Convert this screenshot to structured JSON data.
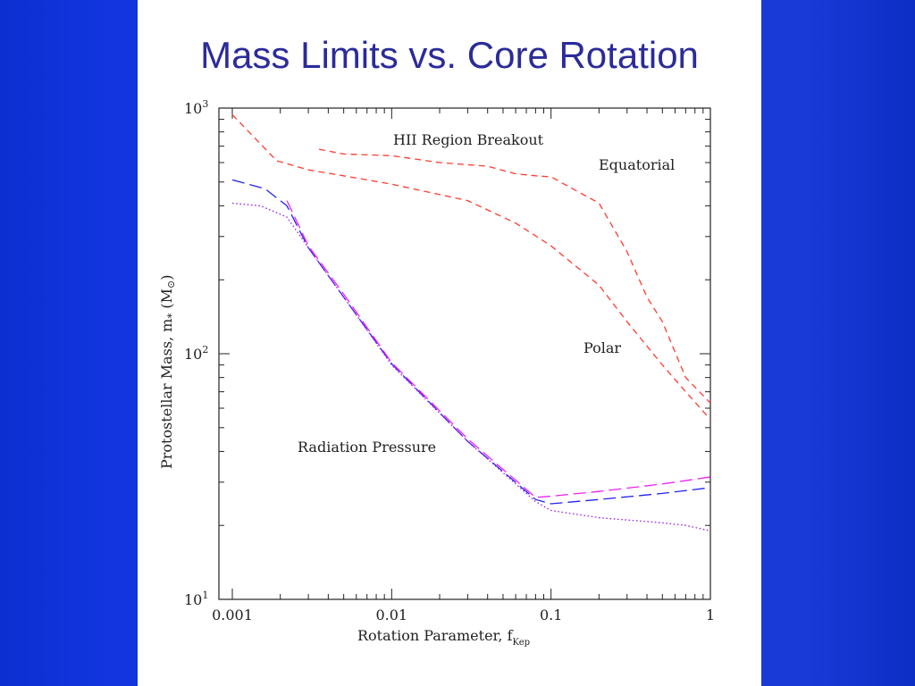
{
  "slide": {
    "title": "Mass Limits vs. Core Rotation"
  },
  "colors": {
    "background": "#1a3ad8",
    "panel": "#ffffff",
    "title": "#2b2b9a",
    "red": "#ff3b2f",
    "blue": "#2222ee",
    "magenta": "#ee22ee",
    "purple": "#9a22ee"
  },
  "chart_data": {
    "type": "line",
    "xlabel": "Rotation Parameter, f",
    "xlabel_sub": "Kep",
    "ylabel": "Protostellar Mass, m",
    "ylabel_sub": "*",
    "ylabel_unit": "(M",
    "ylabel_unit_sub": "⊙",
    "ylabel_unit_close": ")",
    "xscale": "log",
    "yscale": "log",
    "xlim": [
      0.001,
      1
    ],
    "ylim": [
      10,
      1000
    ],
    "xticks": [
      {
        "v": 0.001,
        "label": "0.001"
      },
      {
        "v": 0.01,
        "label": "0.01"
      },
      {
        "v": 0.1,
        "label": "0.1"
      },
      {
        "v": 1,
        "label": "1"
      }
    ],
    "yticks": [
      {
        "v": 10,
        "base": "10",
        "exp": "1"
      },
      {
        "v": 100,
        "base": "10",
        "exp": "2"
      },
      {
        "v": 1000,
        "base": "10",
        "exp": "3"
      }
    ],
    "annotations": {
      "hii": "HII Region Breakout",
      "equatorial": "Equatorial",
      "polar": "Polar",
      "radiation": "Radiation Pressure"
    },
    "series": [
      {
        "color": "#ff3b2f",
        "dash": "7,5",
        "x": [
          0.0035,
          0.005,
          0.01,
          0.02,
          0.04,
          0.06,
          0.08,
          0.1,
          0.2,
          0.3,
          0.4,
          0.5,
          0.7,
          1.0
        ],
        "y": [
          680,
          650,
          640,
          600,
          580,
          540,
          530,
          525,
          410,
          260,
          170,
          135,
          80,
          63
        ]
      },
      {
        "color": "#ff3b2f",
        "dash": "7,5",
        "x": [
          0.001,
          0.0019,
          0.003,
          0.005,
          0.01,
          0.03,
          0.06,
          0.1,
          0.2,
          0.3,
          0.5,
          0.7,
          1.0
        ],
        "y": [
          940,
          610,
          560,
          530,
          490,
          420,
          340,
          275,
          190,
          135,
          90,
          70,
          54
        ]
      },
      {
        "color": "#2222ee",
        "dash": "14,6",
        "x": [
          0.001,
          0.0016,
          0.0022,
          0.003,
          0.005,
          0.01,
          0.03,
          0.08,
          0.1,
          0.2,
          0.5,
          1.0
        ],
        "y": [
          510,
          470,
          400,
          270,
          170,
          91,
          44,
          25.5,
          24.5,
          25.5,
          27,
          28.5
        ]
      },
      {
        "color": "#ee22ee",
        "dash": "14,6",
        "x": [
          0.0022,
          0.003,
          0.005,
          0.01,
          0.03,
          0.08,
          0.1,
          0.2,
          0.5,
          1.0
        ],
        "y": [
          420,
          275,
          175,
          92,
          45,
          26,
          26.3,
          27.5,
          29.5,
          31.5
        ]
      },
      {
        "color": "#9a22ee",
        "dash": "1.6,2.6",
        "x": [
          0.001,
          0.0015,
          0.0022,
          0.003,
          0.005,
          0.01,
          0.03,
          0.08,
          0.1,
          0.2,
          0.5,
          0.7,
          1.0
        ],
        "y": [
          410,
          400,
          360,
          270,
          170,
          90,
          44,
          25,
          23,
          21.5,
          20.5,
          20,
          19
        ]
      }
    ]
  }
}
